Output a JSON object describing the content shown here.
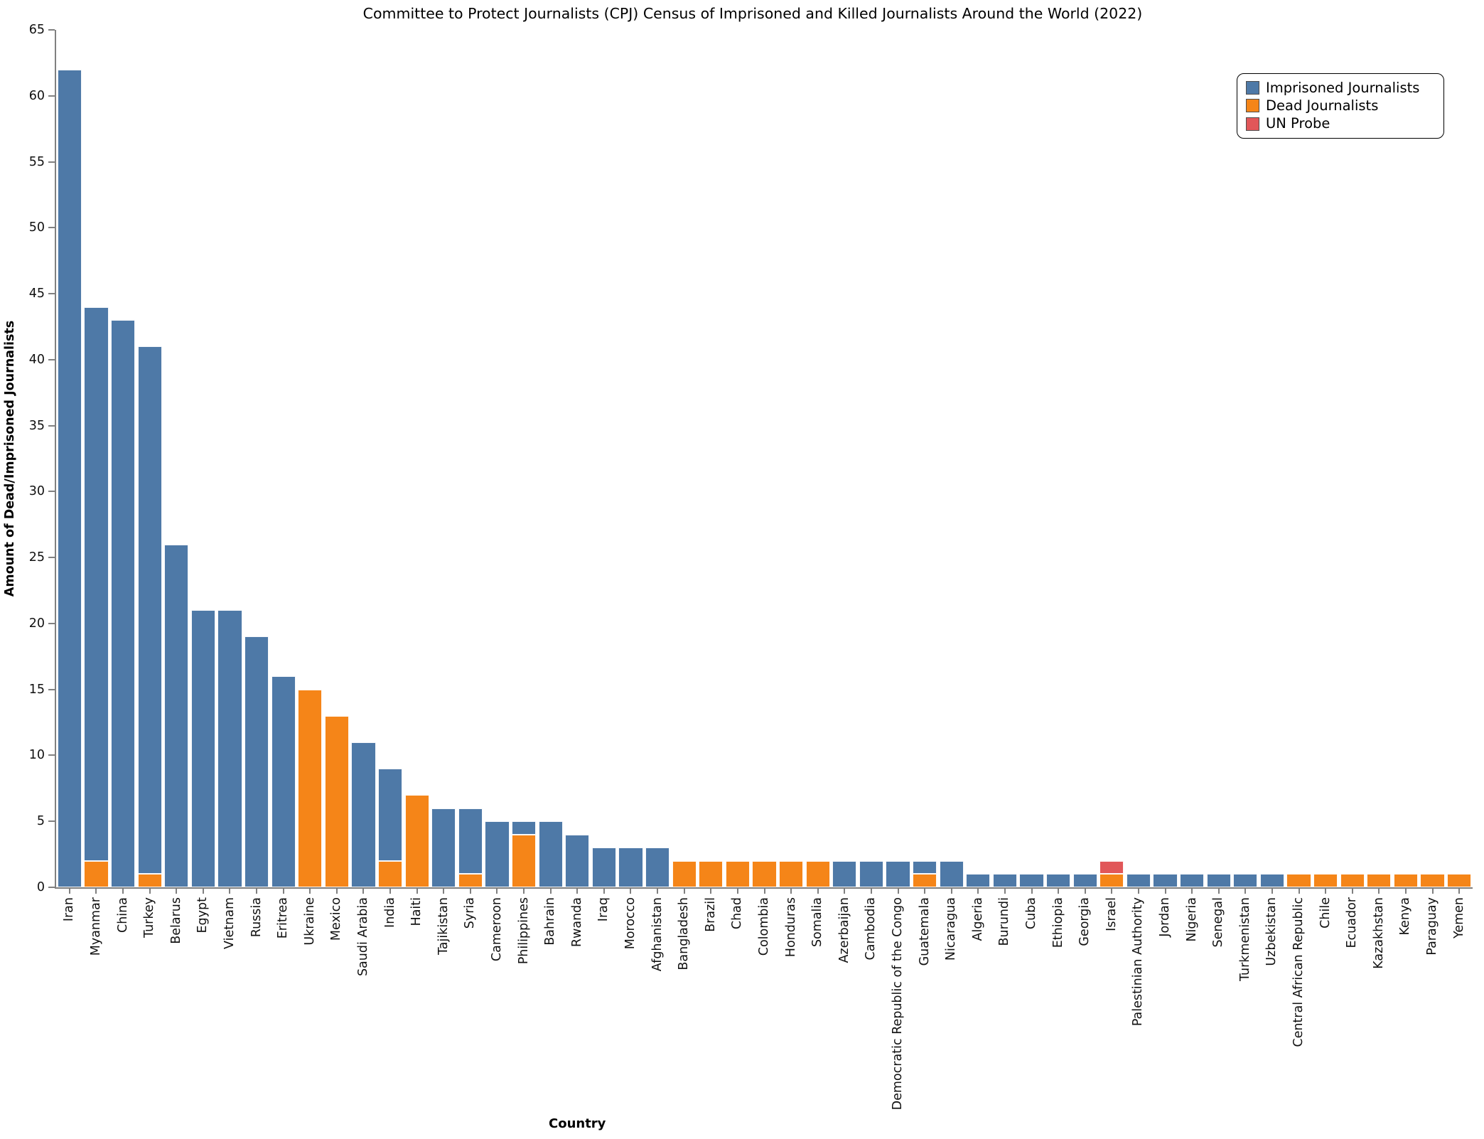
{
  "chart_data": {
    "type": "bar",
    "stacked": true,
    "title": "Committee to Protect Journalists (CPJ) Census of Imprisoned and Killed Journalists Around the World (2022)",
    "xlabel": "Country",
    "ylabel": "Amount of Dead/Imprisoned Journalists",
    "ylim": [
      0,
      65
    ],
    "yticks": [
      0,
      5,
      10,
      15,
      20,
      25,
      30,
      35,
      40,
      45,
      50,
      55,
      60,
      65
    ],
    "grid": false,
    "legend_position": "top-right",
    "legend": [
      {
        "key": "imprisoned",
        "label": "Imprisoned Journalists",
        "color": "#4e79a7"
      },
      {
        "key": "dead",
        "label": "Dead Journalists",
        "color": "#f58518"
      },
      {
        "key": "probe",
        "label": "UN Probe",
        "color": "#e15759"
      }
    ],
    "categories": [
      "Iran",
      "Myanmar",
      "China",
      "Turkey",
      "Belarus",
      "Egypt",
      "Vietnam",
      "Russia",
      "Eritrea",
      "Ukraine",
      "Mexico",
      "Saudi Arabia",
      "India",
      "Haiti",
      "Tajikistan",
      "Syria",
      "Cameroon",
      "Philippines",
      "Bahrain",
      "Rwanda",
      "Iraq",
      "Morocco",
      "Afghanistan",
      "Bangladesh",
      "Brazil",
      "Chad",
      "Colombia",
      "Honduras",
      "Somalia",
      "Azerbaijan",
      "Cambodia",
      "Democratic Republic of the Congo",
      "Guatemala",
      "Nicaragua",
      "Algeria",
      "Burundi",
      "Cuba",
      "Ethiopia",
      "Georgia",
      "Israel",
      "Palestinian Authority",
      "Jordan",
      "Nigeria",
      "Senegal",
      "Turkmenistan",
      "Uzbekistan",
      "Central African Republic",
      "Chile",
      "Ecuador",
      "Kazakhstan",
      "Kenya",
      "Paraguay",
      "Yemen"
    ],
    "series": [
      {
        "name": "Dead Journalists",
        "key": "dead",
        "color": "#f58518",
        "stack_order": 0,
        "values": [
          0,
          2,
          0,
          1,
          0,
          0,
          0,
          0,
          0,
          15,
          13,
          0,
          2,
          7,
          0,
          1,
          0,
          4,
          0,
          0,
          0,
          0,
          0,
          2,
          2,
          2,
          2,
          2,
          2,
          0,
          0,
          0,
          1,
          0,
          0,
          0,
          0,
          0,
          0,
          1,
          0,
          0,
          0,
          0,
          0,
          0,
          1,
          1,
          1,
          1,
          1,
          1,
          1
        ]
      },
      {
        "name": "Imprisoned Journalists",
        "key": "imprisoned",
        "color": "#4e79a7",
        "stack_order": 1,
        "values": [
          62,
          42,
          43,
          40,
          26,
          21,
          21,
          19,
          16,
          0,
          0,
          11,
          7,
          0,
          6,
          5,
          5,
          1,
          5,
          4,
          3,
          3,
          3,
          0,
          0,
          0,
          0,
          0,
          0,
          2,
          2,
          2,
          1,
          2,
          1,
          1,
          1,
          1,
          1,
          0,
          1,
          1,
          1,
          1,
          1,
          1,
          0,
          0,
          0,
          0,
          0,
          0,
          0
        ]
      },
      {
        "name": "UN Probe",
        "key": "probe",
        "color": "#e15759",
        "stack_order": 2,
        "values": [
          0,
          0,
          0,
          0,
          0,
          0,
          0,
          0,
          0,
          0,
          0,
          0,
          0,
          0,
          0,
          0,
          0,
          0,
          0,
          0,
          0,
          0,
          0,
          0,
          0,
          0,
          0,
          0,
          0,
          0,
          0,
          0,
          0,
          0,
          0,
          0,
          0,
          0,
          0,
          1,
          0,
          0,
          0,
          0,
          0,
          0,
          0,
          0,
          0,
          0,
          0,
          0,
          0
        ]
      }
    ],
    "axis_color": "#808080",
    "bar_edge_color": "#ffffff"
  }
}
